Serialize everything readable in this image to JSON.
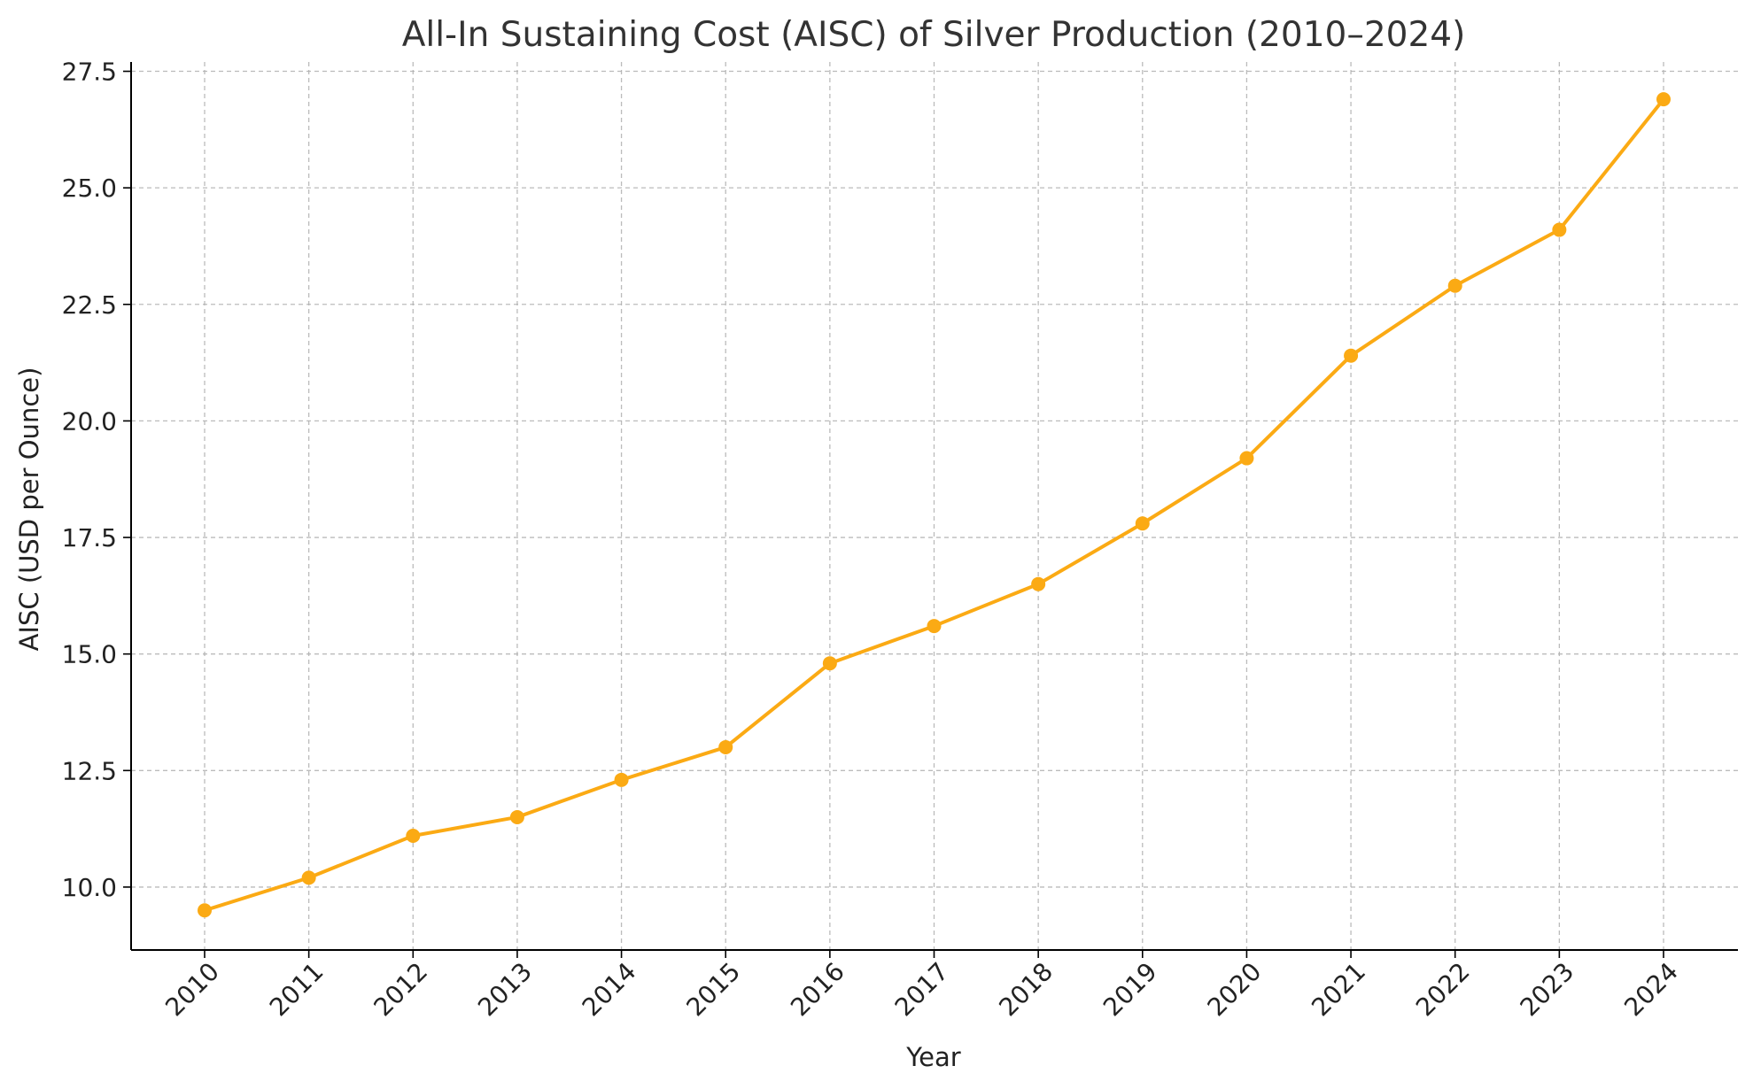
{
  "chart_data": {
    "type": "line",
    "title": "All-In Sustaining Cost (AISC) of Silver Production (2010–2024)",
    "xlabel": "Year",
    "ylabel": "AISC (USD per Ounce)",
    "categories": [
      "2010",
      "2011",
      "2012",
      "2013",
      "2014",
      "2015",
      "2016",
      "2017",
      "2018",
      "2019",
      "2020",
      "2021",
      "2022",
      "2023",
      "2024"
    ],
    "series": [
      {
        "values": [
          9.5,
          10.2,
          11.1,
          11.5,
          12.3,
          13.0,
          14.8,
          15.6,
          16.5,
          17.8,
          19.2,
          21.4,
          22.9,
          24.1,
          26.9
        ],
        "color": "#FBAA14",
        "marker": "circle"
      }
    ],
    "ylim": [
      8.65,
      27.7
    ],
    "yticks": [
      10.0,
      12.5,
      15.0,
      17.5,
      20.0,
      22.5,
      25.0,
      27.5
    ],
    "ytick_labels": [
      "10.0",
      "12.5",
      "15.0",
      "17.5",
      "20.0",
      "22.5",
      "25.0",
      "27.5"
    ],
    "grid": true,
    "legend": "none"
  }
}
